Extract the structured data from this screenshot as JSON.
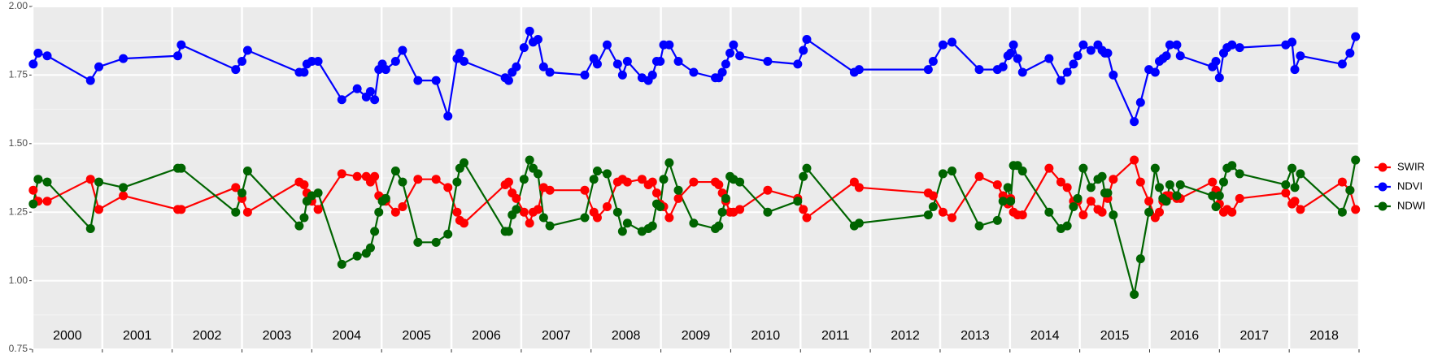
{
  "chart_data": {
    "type": "line",
    "x": [
      2000.01,
      2000.08,
      2000.21,
      2000.83,
      2000.95,
      2001.3,
      2002.08,
      2002.13,
      2002.91,
      2003.0,
      2003.08,
      2003.82,
      2003.89,
      2003.93,
      2004.0,
      2004.09,
      2004.43,
      2004.65,
      2004.78,
      2004.84,
      2004.9,
      2004.96,
      2005.01,
      2005.06,
      2005.2,
      2005.3,
      2005.52,
      2005.78,
      2005.95,
      2006.08,
      2006.12,
      2006.18,
      2006.77,
      2006.82,
      2006.87,
      2006.93,
      2007.04,
      2007.12,
      2007.17,
      2007.24,
      2007.32,
      2007.41,
      2007.91,
      2008.04,
      2008.09,
      2008.23,
      2008.38,
      2008.45,
      2008.52,
      2008.73,
      2008.82,
      2008.88,
      2008.94,
      2008.99,
      2009.04,
      2009.12,
      2009.25,
      2009.47,
      2009.78,
      2009.83,
      2009.88,
      2009.93,
      2009.99,
      2010.04,
      2010.13,
      2010.53,
      2010.96,
      2011.04,
      2011.09,
      2011.77,
      2011.84,
      2012.83,
      2012.9,
      2013.04,
      2013.17,
      2013.56,
      2013.82,
      2013.9,
      2013.97,
      2014.01,
      2014.05,
      2014.11,
      2014.18,
      2014.56,
      2014.73,
      2014.82,
      2014.91,
      2014.97,
      2015.05,
      2015.16,
      2015.26,
      2015.32,
      2015.36,
      2015.4,
      2015.48,
      2015.78,
      2015.87,
      2015.99,
      2016.08,
      2016.14,
      2016.19,
      2016.24,
      2016.29,
      2016.39,
      2016.44,
      2016.9,
      2016.95,
      2017.0,
      2017.06,
      2017.11,
      2017.18,
      2017.29,
      2017.95,
      2018.04,
      2018.08,
      2018.16,
      2018.76,
      2018.87,
      2018.95
    ],
    "series": [
      {
        "name": "SWIR",
        "color": "#ff0000",
        "values": [
          1.33,
          1.29,
          1.29,
          1.37,
          1.26,
          1.31,
          1.26,
          1.26,
          1.34,
          1.3,
          1.25,
          1.36,
          1.35,
          1.32,
          1.29,
          1.26,
          1.39,
          1.38,
          1.38,
          1.36,
          1.38,
          1.31,
          1.3,
          1.29,
          1.25,
          1.27,
          1.37,
          1.37,
          1.34,
          1.25,
          1.22,
          1.21,
          1.35,
          1.36,
          1.32,
          1.3,
          1.25,
          1.21,
          1.25,
          1.26,
          1.34,
          1.33,
          1.33,
          1.25,
          1.23,
          1.27,
          1.36,
          1.37,
          1.36,
          1.37,
          1.35,
          1.36,
          1.32,
          1.28,
          1.27,
          1.23,
          1.3,
          1.36,
          1.36,
          1.35,
          1.32,
          1.29,
          1.25,
          1.25,
          1.26,
          1.33,
          1.3,
          1.26,
          1.23,
          1.36,
          1.34,
          1.32,
          1.31,
          1.25,
          1.23,
          1.38,
          1.35,
          1.31,
          1.28,
          1.3,
          1.25,
          1.24,
          1.24,
          1.41,
          1.36,
          1.34,
          1.29,
          1.29,
          1.24,
          1.29,
          1.26,
          1.25,
          1.32,
          1.3,
          1.37,
          1.44,
          1.36,
          1.29,
          1.23,
          1.25,
          1.29,
          1.31,
          1.31,
          1.3,
          1.3,
          1.36,
          1.33,
          1.28,
          1.25,
          1.26,
          1.25,
          1.3,
          1.32,
          1.28,
          1.29,
          1.26,
          1.36,
          1.33,
          1.26
        ]
      },
      {
        "name": "NDVI",
        "color": "#0000ff",
        "values": [
          1.79,
          1.83,
          1.82,
          1.73,
          1.78,
          1.81,
          1.82,
          1.86,
          1.77,
          1.8,
          1.84,
          1.76,
          1.76,
          1.79,
          1.8,
          1.8,
          1.66,
          1.7,
          1.67,
          1.69,
          1.66,
          1.77,
          1.79,
          1.77,
          1.8,
          1.84,
          1.73,
          1.73,
          1.6,
          1.81,
          1.83,
          1.8,
          1.74,
          1.73,
          1.76,
          1.78,
          1.85,
          1.91,
          1.87,
          1.88,
          1.78,
          1.76,
          1.75,
          1.81,
          1.79,
          1.86,
          1.79,
          1.75,
          1.8,
          1.74,
          1.73,
          1.75,
          1.8,
          1.8,
          1.86,
          1.86,
          1.8,
          1.76,
          1.74,
          1.74,
          1.76,
          1.79,
          1.83,
          1.86,
          1.82,
          1.8,
          1.79,
          1.84,
          1.88,
          1.76,
          1.77,
          1.77,
          1.8,
          1.86,
          1.87,
          1.77,
          1.77,
          1.78,
          1.82,
          1.83,
          1.86,
          1.81,
          1.76,
          1.81,
          1.73,
          1.76,
          1.79,
          1.82,
          1.86,
          1.84,
          1.86,
          1.84,
          1.83,
          1.83,
          1.75,
          1.58,
          1.65,
          1.77,
          1.76,
          1.8,
          1.81,
          1.82,
          1.86,
          1.86,
          1.82,
          1.78,
          1.8,
          1.74,
          1.83,
          1.85,
          1.86,
          1.85,
          1.86,
          1.87,
          1.77,
          1.82,
          1.79,
          1.83,
          1.89
        ]
      },
      {
        "name": "NDWI",
        "color": "#006400",
        "values": [
          1.28,
          1.37,
          1.36,
          1.19,
          1.36,
          1.34,
          1.41,
          1.41,
          1.25,
          1.32,
          1.4,
          1.2,
          1.23,
          1.29,
          1.31,
          1.32,
          1.06,
          1.09,
          1.1,
          1.12,
          1.18,
          1.25,
          1.29,
          1.3,
          1.4,
          1.36,
          1.14,
          1.14,
          1.17,
          1.36,
          1.41,
          1.43,
          1.18,
          1.18,
          1.24,
          1.26,
          1.37,
          1.44,
          1.41,
          1.39,
          1.23,
          1.2,
          1.23,
          1.37,
          1.4,
          1.39,
          1.25,
          1.18,
          1.21,
          1.18,
          1.19,
          1.2,
          1.28,
          1.27,
          1.37,
          1.43,
          1.33,
          1.21,
          1.19,
          1.2,
          1.25,
          1.3,
          1.38,
          1.37,
          1.36,
          1.25,
          1.29,
          1.38,
          1.41,
          1.2,
          1.21,
          1.24,
          1.27,
          1.39,
          1.4,
          1.2,
          1.22,
          1.29,
          1.34,
          1.29,
          1.42,
          1.42,
          1.4,
          1.25,
          1.19,
          1.2,
          1.27,
          1.3,
          1.41,
          1.34,
          1.37,
          1.38,
          1.32,
          1.32,
          1.24,
          0.95,
          1.08,
          1.25,
          1.41,
          1.34,
          1.3,
          1.29,
          1.35,
          1.31,
          1.35,
          1.31,
          1.27,
          1.31,
          1.36,
          1.41,
          1.42,
          1.39,
          1.35,
          1.41,
          1.34,
          1.39,
          1.25,
          1.33,
          1.44
        ]
      }
    ],
    "xlim": [
      2000,
      2019
    ],
    "xticks": [
      2000,
      2001,
      2002,
      2003,
      2004,
      2005,
      2006,
      2007,
      2008,
      2009,
      2010,
      2011,
      2012,
      2013,
      2014,
      2015,
      2016,
      2017,
      2018,
      2019
    ],
    "annotations": [
      "2000",
      "2001",
      "2002",
      "2003",
      "2004",
      "2005",
      "2006",
      "2007",
      "2008",
      "2009",
      "2010",
      "2011",
      "2012",
      "2013",
      "2014",
      "2015",
      "2016",
      "2017",
      "2018"
    ],
    "ylim": [
      0.75,
      2.0
    ],
    "yticks": [
      {
        "value": 0.75,
        "label": "0.75"
      },
      {
        "value": 1.0,
        "label": "1.00"
      },
      1.25,
      {
        "value": 1.5,
        "label": "1.50"
      },
      1.75,
      {
        "value": 2.0,
        "label": "2.00"
      }
    ],
    "grid": true,
    "legend": "right"
  }
}
